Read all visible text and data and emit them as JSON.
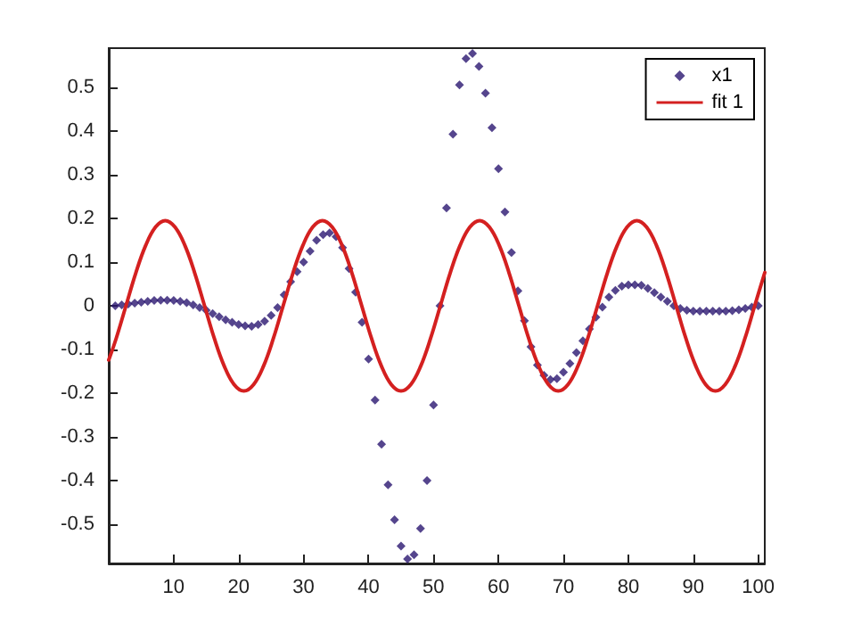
{
  "chart_data": {
    "type": "scatter",
    "xlim": [
      0,
      101
    ],
    "xticks": [
      10,
      20,
      30,
      40,
      50,
      60,
      70,
      80,
      90,
      100
    ],
    "ylim": [
      -0.59,
      0.59
    ],
    "yticks": [
      -0.5,
      -0.4,
      -0.3,
      -0.2,
      -0.1,
      0,
      0.1,
      0.2,
      0.3,
      0.4,
      0.5
    ],
    "grid": false,
    "legend": "top right",
    "series": [
      {
        "name": "x1",
        "marker": "diamond",
        "color": "#2a1670",
        "x": [
          1,
          2,
          3,
          4,
          5,
          6,
          7,
          8,
          9,
          10,
          11,
          12,
          13,
          14,
          15,
          16,
          17,
          18,
          19,
          20,
          21,
          22,
          23,
          24,
          25,
          26,
          27,
          28,
          29,
          30,
          31,
          32,
          33,
          34,
          35,
          36,
          37,
          38,
          39,
          40,
          41,
          42,
          43,
          44,
          45,
          46,
          47,
          48,
          49,
          50,
          51,
          52,
          53,
          54,
          55,
          56,
          57,
          58,
          59,
          60,
          61,
          62,
          63,
          64,
          65,
          66,
          67,
          68,
          69,
          70,
          71,
          72,
          73,
          74,
          75,
          76,
          77,
          78,
          79,
          80,
          81,
          82,
          83,
          84,
          85,
          86,
          87,
          88,
          89,
          90,
          91,
          92,
          93,
          94,
          95,
          96,
          97,
          98,
          99,
          100
        ],
        "values": [
          0,
          0.002,
          0.004,
          0.006,
          0.008,
          0.01,
          0.012,
          0.013,
          0.013,
          0.012,
          0.01,
          0.007,
          0.002,
          -0.004,
          -0.01,
          -0.018,
          -0.025,
          -0.032,
          -0.038,
          -0.043,
          -0.046,
          -0.047,
          -0.043,
          -0.035,
          -0.022,
          -0.004,
          0.025,
          0.055,
          0.078,
          0.1,
          0.125,
          0.15,
          0.163,
          0.167,
          0.158,
          0.133,
          0.085,
          0.031,
          -0.038,
          -0.122,
          -0.216,
          -0.317,
          -0.41,
          -0.49,
          -0.55,
          -0.58,
          -0.57,
          -0.51,
          -0.4,
          -0.227,
          0,
          0.224,
          0.393,
          0.506,
          0.566,
          0.578,
          0.548,
          0.487,
          0.408,
          0.314,
          0.215,
          0.122,
          0.034,
          -0.034,
          -0.094,
          -0.136,
          -0.159,
          -0.169,
          -0.167,
          -0.152,
          -0.132,
          -0.107,
          -0.08,
          -0.053,
          -0.026,
          -0.003,
          0.02,
          0.035,
          0.045,
          0.048,
          0.048,
          0.047,
          0.04,
          0.03,
          0.02,
          0.01,
          0,
          -0.006,
          -0.01,
          -0.012,
          -0.012,
          -0.012,
          -0.012,
          -0.012,
          -0.012,
          -0.011,
          -0.009,
          -0.006,
          -0.003,
          0
        ]
      },
      {
        "name": "fit 1",
        "type": "line",
        "marker": "none",
        "line_style": "solid",
        "color": "#d42020",
        "x": [
          0,
          1.14,
          2.65,
          4.16,
          5.68,
          7.19,
          8.7,
          10.21,
          11.73,
          13.24,
          14.75,
          16.26,
          17.78,
          19.29,
          20.8,
          22.31,
          23.83,
          25.34,
          26.85,
          28.36,
          29.88,
          31.39,
          32.9,
          34.41,
          35.93,
          37.44,
          38.95,
          40.46,
          41.98,
          43.49,
          45,
          46.51,
          48.03,
          49.54,
          51.05,
          52.56,
          54.08,
          55.59,
          57.1,
          58.61,
          60.13,
          61.64,
          63.15,
          64.66,
          66.18,
          67.69,
          69.2,
          70.71,
          72.23,
          73.74,
          75.25,
          76.76,
          78.28,
          79.79,
          81.3,
          82.81,
          84.33,
          85.84,
          87.35,
          88.86,
          90.38,
          91.89,
          93.4,
          94.91,
          96.43,
          97.94,
          99.45,
          101
        ],
        "values": [
          -0.124,
          -0.075,
          0,
          0.075,
          0.138,
          0.18,
          0.195,
          0.18,
          0.138,
          0.075,
          0,
          -0.075,
          -0.138,
          -0.18,
          -0.195,
          -0.18,
          -0.138,
          -0.075,
          0,
          0.075,
          0.138,
          0.18,
          0.195,
          0.18,
          0.138,
          0.075,
          0,
          -0.075,
          -0.138,
          -0.18,
          -0.195,
          -0.18,
          -0.138,
          -0.075,
          0,
          0.075,
          0.138,
          0.18,
          0.195,
          0.18,
          0.138,
          0.075,
          0,
          -0.075,
          -0.138,
          -0.18,
          -0.195,
          -0.18,
          -0.138,
          -0.075,
          0,
          0.075,
          0.138,
          0.18,
          0.195,
          0.18,
          0.138,
          0.075,
          0,
          -0.075,
          -0.138,
          -0.18,
          -0.195,
          -0.18,
          -0.138,
          -0.075,
          0,
          0.076
        ]
      }
    ]
  }
}
